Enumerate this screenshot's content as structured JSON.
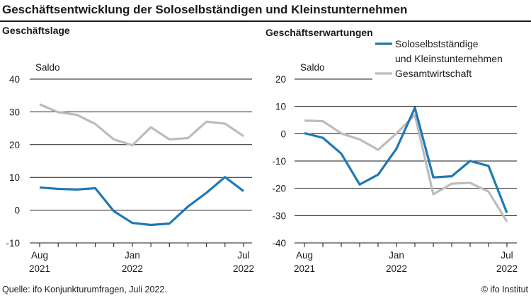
{
  "title": "Geschäftsentwicklung der Soloselbständigen und Kleinstunternehmen",
  "footer": {
    "source": "Quelle: ifo Konjunkturumfragen, Juli 2022.",
    "copyright": "© ifo Institut"
  },
  "colors": {
    "solo": "#1f78b4",
    "gesamt": "#bcbcbc",
    "grid": "#1a1a1a"
  },
  "chart_data": [
    {
      "type": "line",
      "title": "Geschäftslage",
      "ylabel": "Saldo",
      "ylim": [
        -10,
        40
      ],
      "yticks": [
        -10,
        0,
        10,
        20,
        30,
        40
      ],
      "x": [
        "2021-08",
        "2021-09",
        "2021-10",
        "2021-11",
        "2021-12",
        "2022-01",
        "2022-02",
        "2022-03",
        "2022-04",
        "2022-05",
        "2022-06",
        "2022-07"
      ],
      "xtick_labels": [
        {
          "x": "2021-08",
          "line1": "Aug",
          "line2": "2021"
        },
        {
          "x": "2022-01",
          "line1": "Jan",
          "line2": "2022"
        },
        {
          "x": "2022-07",
          "line1": "Jul",
          "line2": "2022"
        }
      ],
      "grid": true,
      "series": [
        {
          "name": "Soloselbstständige und Kleinstunternehmen",
          "color": "#1f78b4",
          "values": [
            6.9,
            6.5,
            6.3,
            6.7,
            -0.3,
            -3.9,
            -4.5,
            -4.1,
            1.1,
            5.3,
            10.1,
            5.8
          ]
        },
        {
          "name": "Gesamtwirtschaft",
          "color": "#bcbcbc",
          "values": [
            32.3,
            29.9,
            29.1,
            26.3,
            21.6,
            19.8,
            25.3,
            21.6,
            22.0,
            27.0,
            26.4,
            22.6
          ]
        }
      ]
    },
    {
      "type": "line",
      "title": "Geschäftserwartungen",
      "ylabel": "Saldo",
      "ylim": [
        -40,
        20
      ],
      "yticks": [
        -40,
        -30,
        -20,
        -10,
        0,
        10,
        20
      ],
      "x": [
        "2021-08",
        "2021-09",
        "2021-10",
        "2021-11",
        "2021-12",
        "2022-01",
        "2022-02",
        "2022-03",
        "2022-04",
        "2022-05",
        "2022-06",
        "2022-07"
      ],
      "xtick_labels": [
        {
          "x": "2021-08",
          "line1": "Aug",
          "line2": "2021"
        },
        {
          "x": "2022-01",
          "line1": "Jan",
          "line2": "2022"
        },
        {
          "x": "2022-07",
          "line1": "Jul",
          "line2": "2022"
        }
      ],
      "grid": true,
      "legend": {
        "position": "top-right",
        "entries": [
          {
            "line1": "Soloselbstständige",
            "line2": "und Kleinstunternehmen",
            "color": "#1f78b4"
          },
          {
            "line1": "Gesamtwirtschaft",
            "line2": "",
            "color": "#bcbcbc"
          }
        ]
      },
      "series": [
        {
          "name": "Soloselbstständige und Kleinstunternehmen",
          "color": "#1f78b4",
          "values": [
            0.2,
            -1.5,
            -7.3,
            -18.6,
            -15.0,
            -5.5,
            9.5,
            -16.0,
            -15.6,
            -10.0,
            -11.8,
            -29.0
          ]
        },
        {
          "name": "Gesamtwirtschaft",
          "color": "#bcbcbc",
          "values": [
            4.8,
            4.6,
            0.1,
            -2.1,
            -5.9,
            0.1,
            6.9,
            -22.2,
            -18.3,
            -18.0,
            -21.2,
            -32.2
          ]
        }
      ]
    }
  ]
}
